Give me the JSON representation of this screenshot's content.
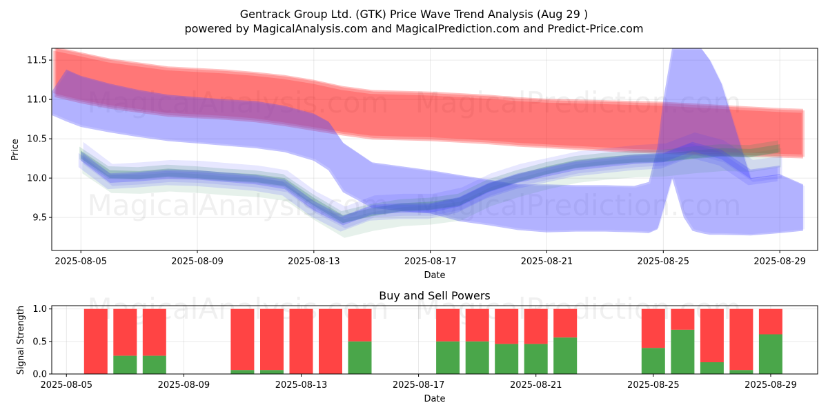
{
  "title": "Gentrack Group Ltd. (GTK) Price Wave Trend Analysis (Aug 29 )",
  "subtitle": "powered by MagicalAnalysis.com and MagicalPrediction.com and Predict-Price.com",
  "watermarks": [
    "MagicalAnalysis.com",
    "MagicalPrediction.com"
  ],
  "chart_data": [
    {
      "type": "area",
      "title": "Gentrack Group Ltd. (GTK) Price Wave Trend Analysis (Aug 29 )",
      "xlabel": "Date",
      "ylabel": "Price",
      "xlim": [
        -1.0,
        25.3
      ],
      "ylim": [
        9.08,
        11.65
      ],
      "x_dates": [
        "2025-08-04",
        "2025-08-05",
        "2025-08-06",
        "2025-08-07",
        "2025-08-08",
        "2025-08-09",
        "2025-08-10",
        "2025-08-11",
        "2025-08-12",
        "2025-08-13",
        "2025-08-14",
        "2025-08-15",
        "2025-08-16",
        "2025-08-17",
        "2025-08-18",
        "2025-08-19",
        "2025-08-20",
        "2025-08-21",
        "2025-08-22",
        "2025-08-23",
        "2025-08-24",
        "2025-08-25",
        "2025-08-26",
        "2025-08-27",
        "2025-08-28",
        "2025-08-29",
        "2025-08-30"
      ],
      "x_ticks": [
        {
          "label": "2025-08-05",
          "x": 0
        },
        {
          "label": "2025-08-09",
          "x": 4
        },
        {
          "label": "2025-08-13",
          "x": 8
        },
        {
          "label": "2025-08-17",
          "x": 12
        },
        {
          "label": "2025-08-21",
          "x": 16
        },
        {
          "label": "2025-08-25",
          "x": 20
        },
        {
          "label": "2025-08-29",
          "x": 24
        }
      ],
      "y_ticks": [
        9.5,
        10.0,
        10.5,
        11.0,
        11.5
      ],
      "series": [
        {
          "name": "red-upper-band",
          "color": "#ff0000",
          "x": [
            -0.9,
            0,
            1,
            2,
            3,
            4,
            5,
            6,
            7,
            8,
            9,
            10,
            11,
            12,
            13,
            14,
            15,
            16,
            17,
            18,
            19,
            20,
            21,
            22,
            23,
            24,
            24.8
          ],
          "upper": [
            11.65,
            11.58,
            11.5,
            11.45,
            11.4,
            11.38,
            11.36,
            11.33,
            11.29,
            11.23,
            11.15,
            11.1,
            11.09,
            11.08,
            11.06,
            11.04,
            11.01,
            10.99,
            10.98,
            10.97,
            10.96,
            10.95,
            10.93,
            10.91,
            10.89,
            10.87,
            10.86
          ],
          "lower": [
            11.05,
            10.97,
            10.9,
            10.85,
            10.8,
            10.78,
            10.76,
            10.73,
            10.68,
            10.62,
            10.56,
            10.51,
            10.5,
            10.49,
            10.47,
            10.45,
            10.42,
            10.4,
            10.38,
            10.36,
            10.34,
            10.33,
            10.31,
            10.3,
            10.29,
            10.28,
            10.27
          ]
        },
        {
          "name": "blue-wave-band",
          "color": "#4d4dff",
          "x": [
            -1.0,
            -0.5,
            0,
            1,
            2,
            3,
            4,
            5,
            6,
            7,
            8,
            8.5,
            9,
            10,
            11,
            12,
            13,
            14,
            15,
            16,
            17,
            18,
            19,
            19.5,
            19.8,
            20,
            20.3,
            20.7,
            21,
            21.3,
            21.6,
            22,
            23,
            24,
            24.8
          ],
          "upper": [
            11.1,
            11.38,
            11.3,
            11.2,
            11.12,
            11.06,
            11.03,
            11.0,
            10.98,
            10.92,
            10.82,
            10.72,
            10.45,
            10.2,
            10.15,
            10.1,
            10.04,
            9.98,
            9.92,
            9.92,
            9.91,
            9.91,
            9.9,
            9.95,
            10.4,
            11.0,
            11.65,
            11.65,
            11.65,
            11.65,
            11.5,
            11.2,
            10.0,
            10.05,
            9.92
          ],
          "lower": [
            10.8,
            10.72,
            10.65,
            10.58,
            10.52,
            10.47,
            10.44,
            10.41,
            10.38,
            10.33,
            10.22,
            10.1,
            9.82,
            9.62,
            9.58,
            9.55,
            9.45,
            9.4,
            9.34,
            9.31,
            9.32,
            9.32,
            9.31,
            9.3,
            9.35,
            9.6,
            10.0,
            9.5,
            9.33,
            9.3,
            9.28,
            9.28,
            9.27,
            9.3,
            9.33
          ]
        },
        {
          "name": "green-trend",
          "color": "#2e8b57",
          "x": [
            0,
            1,
            2,
            3,
            4,
            5,
            6,
            7,
            8,
            9,
            10,
            11,
            12,
            13,
            14,
            15,
            16,
            17,
            18,
            19,
            20,
            21,
            22,
            23,
            24
          ],
          "values": [
            10.3,
            10.05,
            10.04,
            10.07,
            10.05,
            10.02,
            10.0,
            9.95,
            9.7,
            9.48,
            9.57,
            9.63,
            9.65,
            9.7,
            9.88,
            10.0,
            10.1,
            10.18,
            10.22,
            10.25,
            10.26,
            10.3,
            10.33,
            10.32,
            10.38
          ]
        },
        {
          "name": "blue-trend",
          "color": "#3a3aff",
          "x": [
            0,
            1,
            2,
            3,
            4,
            5,
            6,
            7,
            8,
            9,
            10,
            11,
            12,
            13,
            14,
            15,
            16,
            17,
            18,
            19,
            20,
            21,
            22,
            23,
            24
          ],
          "values": [
            10.28,
            10.0,
            10.02,
            10.05,
            10.04,
            10.01,
            9.98,
            9.92,
            9.65,
            9.46,
            9.6,
            9.62,
            9.62,
            9.7,
            9.88,
            10.0,
            10.08,
            10.16,
            10.2,
            10.24,
            10.26,
            10.4,
            10.3,
            10.05,
            10.1
          ]
        }
      ]
    },
    {
      "type": "bar",
      "title": "Buy and Sell Powers",
      "xlabel": "Date",
      "ylabel": "Signal Strength",
      "ylim": [
        0,
        1.05
      ],
      "y_ticks": [
        0.0,
        0.5,
        1.0
      ],
      "x_ticks": [
        {
          "label": "2025-08-05",
          "x": -1
        },
        {
          "label": "2025-08-09",
          "x": 3
        },
        {
          "label": "2025-08-13",
          "x": 7
        },
        {
          "label": "2025-08-17",
          "x": 11
        },
        {
          "label": "2025-08-21",
          "x": 15
        },
        {
          "label": "2025-08-25",
          "x": 19
        },
        {
          "label": "2025-08-29",
          "x": 23
        }
      ],
      "xlim": [
        -1.5,
        24.6
      ],
      "sell_color": "#ff4444",
      "buy_color": "#4aa64a",
      "bars": [
        {
          "x": 0,
          "buy": 0.0
        },
        {
          "x": 1,
          "buy": 0.28
        },
        {
          "x": 2,
          "buy": 0.28
        },
        {
          "x": 5,
          "buy": 0.06
        },
        {
          "x": 6,
          "buy": 0.06
        },
        {
          "x": 7,
          "buy": 0.0
        },
        {
          "x": 8,
          "buy": 0.0
        },
        {
          "x": 9,
          "buy": 0.5
        },
        {
          "x": 12,
          "buy": 0.5
        },
        {
          "x": 13,
          "buy": 0.5
        },
        {
          "x": 14,
          "buy": 0.46
        },
        {
          "x": 15,
          "buy": 0.46
        },
        {
          "x": 16,
          "buy": 0.56
        },
        {
          "x": 19,
          "buy": 0.4
        },
        {
          "x": 20,
          "buy": 0.68
        },
        {
          "x": 21,
          "buy": 0.18
        },
        {
          "x": 22,
          "buy": 0.06
        },
        {
          "x": 23,
          "buy": 0.61
        }
      ]
    }
  ]
}
